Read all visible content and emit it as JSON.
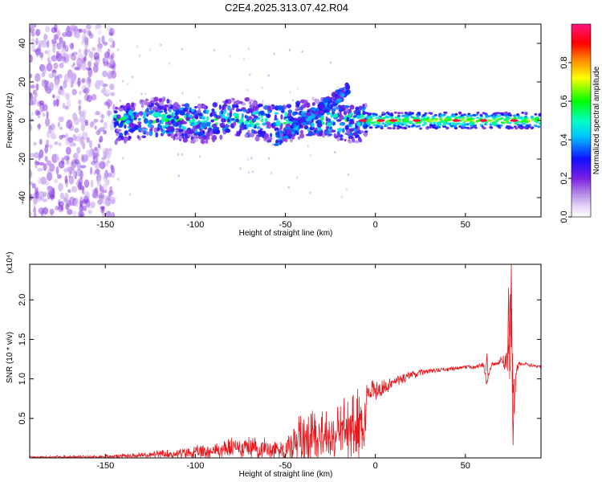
{
  "title": "C2E4.2025.313.07.42.R04",
  "colors": {
    "snr_line": "#e8191e",
    "colormap": [
      "#ffffff",
      "#d9c2f5",
      "#8a2be2",
      "#0000ff",
      "#00ffff",
      "#00ff00",
      "#ffff00",
      "#ff7f00",
      "#ff0000",
      "#ff1493"
    ]
  },
  "chart_data": [
    {
      "type": "heatmap",
      "xlabel": "Height of straight line (km)",
      "ylabel": "Frequency (Hz)",
      "colorbar_label": "Normalized spectral amplitude",
      "xlim": [
        -192,
        92
      ],
      "ylim": [
        -50,
        50
      ],
      "xticks": [
        -150,
        -100,
        -50,
        0,
        50
      ],
      "xtick_labels": [
        "-150",
        "-100",
        "-50",
        "0",
        "50"
      ],
      "yticks": [
        -40,
        -20,
        0,
        20,
        40
      ],
      "ytick_labels": [
        "-40",
        "-20",
        "0",
        "20",
        "40"
      ],
      "colorbar_ticks": [
        0.0,
        0.2,
        0.4,
        0.6,
        0.8
      ],
      "colorbar_tick_labels": [
        "0.0",
        "0.2",
        "0.4",
        "0.6",
        "0.8"
      ],
      "features": [
        {
          "name": "noise region",
          "x_range": [
            -192,
            -145
          ],
          "freq_range": [
            -50,
            50
          ],
          "amplitude": 0.15
        },
        {
          "name": "main band",
          "x_range": [
            -145,
            -5
          ],
          "center_freq": 0,
          "width_hz": 12,
          "amplitude": 0.35
        },
        {
          "name": "rising branch",
          "x_range": [
            -55,
            -15
          ],
          "freq_start": -10,
          "freq_end": 16,
          "amplitude": 0.3
        },
        {
          "name": "stable band",
          "x_range": [
            -5,
            92
          ],
          "center_freq": 0,
          "width_hz": 6,
          "amplitude": 0.65
        },
        {
          "name": "peak spots",
          "x_values": [
            -7,
            3,
            10,
            23,
            45,
            60,
            77
          ],
          "freq": 0,
          "amplitude": 0.95
        }
      ]
    },
    {
      "type": "line",
      "xlabel": "Height of straight line (km)",
      "ylabel": "SNR (10 * v/v)",
      "y_multiplier": "(x10⁴)",
      "xlim": [
        -192,
        92
      ],
      "ylim": [
        0,
        2.45
      ],
      "xticks": [
        -150,
        -100,
        -50,
        0,
        50
      ],
      "xtick_labels": [
        "-150",
        "-100",
        "-50",
        "0",
        "50"
      ],
      "yticks": [
        0.5,
        1.0,
        1.5,
        2.0
      ],
      "ytick_labels": [
        "0.5",
        "1.0",
        "1.5",
        "2.0"
      ],
      "series": [
        {
          "envelope_x": [
            -192,
            -170,
            -150,
            -130,
            -110,
            -100,
            -90,
            -80,
            -70,
            -60,
            -50,
            -45,
            -40,
            -35,
            -30,
            -25,
            -20,
            -15,
            -10,
            -5,
            0,
            10,
            20,
            30,
            40,
            50,
            55,
            60,
            62,
            65,
            68,
            70,
            72,
            74,
            75,
            76,
            77,
            78,
            80,
            85,
            92
          ],
          "envelope_y": [
            0.02,
            0.02,
            0.03,
            0.06,
            0.09,
            0.12,
            0.16,
            0.22,
            0.24,
            0.2,
            0.2,
            0.3,
            0.45,
            0.55,
            0.5,
            0.45,
            0.55,
            0.65,
            0.75,
            0.85,
            0.85,
            0.95,
            1.05,
            1.1,
            1.12,
            1.15,
            1.15,
            1.18,
            0.95,
            1.2,
            1.18,
            1.25,
            1.2,
            1.3,
            1.9,
            1.5,
            0.4,
            1.1,
            1.2,
            1.18,
            1.15
          ],
          "noise_y": [
            0.02,
            0.02,
            0.02,
            0.04,
            0.06,
            0.08,
            0.1,
            0.12,
            0.12,
            0.12,
            0.18,
            0.35,
            0.5,
            0.55,
            0.45,
            0.4,
            0.45,
            0.5,
            0.4,
            0.3,
            0.25,
            0.15,
            0.1,
            0.06,
            0.05,
            0.04,
            0.05,
            0.06,
            0.15,
            0.06,
            0.05,
            0.1,
            0.2,
            0.3,
            0.5,
            0.6,
            0.5,
            0.2,
            0.05,
            0.04,
            0.04
          ],
          "spikes": [
            {
              "x": 62,
              "y": 1.32
            },
            {
              "x": 74,
              "y": 2.15
            },
            {
              "x": 75.5,
              "y": 2.45
            },
            {
              "x": 76.5,
              "y": 0.16
            }
          ]
        }
      ]
    }
  ]
}
